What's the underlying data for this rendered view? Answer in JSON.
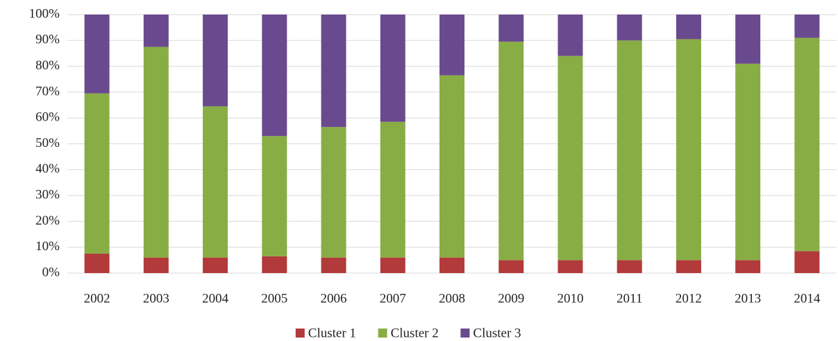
{
  "chart_data": {
    "type": "stacked_bar",
    "categories": [
      "2002",
      "2003",
      "2004",
      "2005",
      "2006",
      "2007",
      "2008",
      "2009",
      "2010",
      "2011",
      "2012",
      "2013",
      "2014"
    ],
    "series": [
      {
        "name": "Cluster 1",
        "color": "#b23a3a",
        "values": [
          7.5,
          6,
          6,
          6.5,
          6,
          6,
          6,
          5,
          5,
          5,
          5,
          5,
          8.5
        ]
      },
      {
        "name": "Cluster 2",
        "color": "#89ad45",
        "values": [
          62,
          81.5,
          58.5,
          46.5,
          50.5,
          52.5,
          70.5,
          84.5,
          79,
          85,
          85.5,
          76,
          82.5
        ]
      },
      {
        "name": "Cluster 3",
        "color": "#6a4a8e",
        "values": [
          30.5,
          12.5,
          35.5,
          47,
          43.5,
          41.5,
          23.5,
          10.5,
          16,
          10,
          9.5,
          19,
          9
        ]
      }
    ],
    "ylim": [
      0,
      100
    ],
    "yticks": [
      {
        "value": 0,
        "label": "0%"
      },
      {
        "value": 10,
        "label": "10%"
      },
      {
        "value": 20,
        "label": "20%"
      },
      {
        "value": 30,
        "label": "30%"
      },
      {
        "value": 40,
        "label": "40%"
      },
      {
        "value": 50,
        "label": "50%"
      },
      {
        "value": 60,
        "label": "60%"
      },
      {
        "value": 70,
        "label": "70%"
      },
      {
        "value": 80,
        "label": "80%"
      },
      {
        "value": 90,
        "label": "90%"
      },
      {
        "value": 100,
        "label": "100%"
      }
    ],
    "grid": true,
    "legend": "bottom"
  }
}
